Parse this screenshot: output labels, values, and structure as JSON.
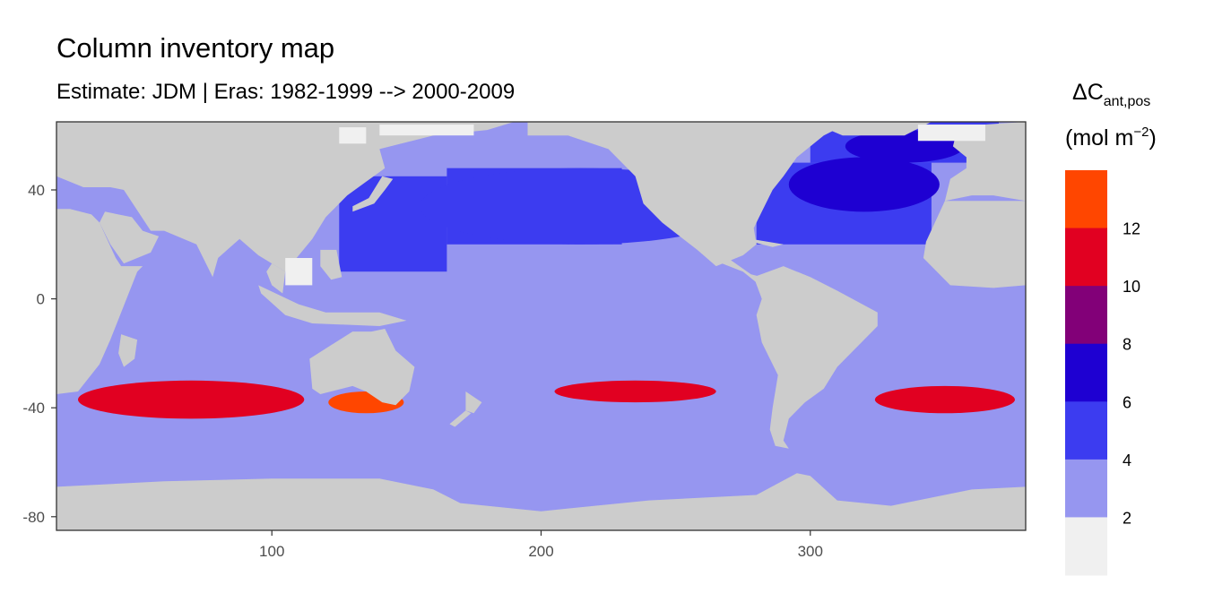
{
  "chart_data": {
    "type": "heatmap",
    "title": "Column inventory map",
    "subtitle": "Estimate: JDM  | Eras: 1982-1999 --> 2000-2009",
    "xlabel": "",
    "ylabel": "",
    "xlim": [
      20,
      380
    ],
    "ylim": [
      -85,
      65
    ],
    "x_ticks": [
      100,
      200,
      300
    ],
    "y_ticks": [
      40,
      0,
      -40,
      -80
    ],
    "land_color": "#cccccc",
    "legend": {
      "title_main": "ΔC",
      "title_sub": "ant,pos",
      "unit_base": "(mol m",
      "unit_exp": "−2",
      "unit_close": ")",
      "bins": [
        {
          "range": [
            0,
            2
          ],
          "color": "#f0f0f0"
        },
        {
          "range": [
            2,
            4
          ],
          "color": "#9696f0"
        },
        {
          "range": [
            4,
            6
          ],
          "color": "#3c3cf0"
        },
        {
          "range": [
            6,
            8
          ],
          "color": "#1e00d2"
        },
        {
          "range": [
            8,
            10
          ],
          "color": "#820078"
        },
        {
          "range": [
            10,
            12
          ],
          "color": "#e10021"
        },
        {
          "range": [
            12,
            14
          ],
          "color": "#ff4600"
        }
      ],
      "labels": [
        "2",
        "4",
        "6",
        "8",
        "10",
        "12"
      ]
    }
  }
}
